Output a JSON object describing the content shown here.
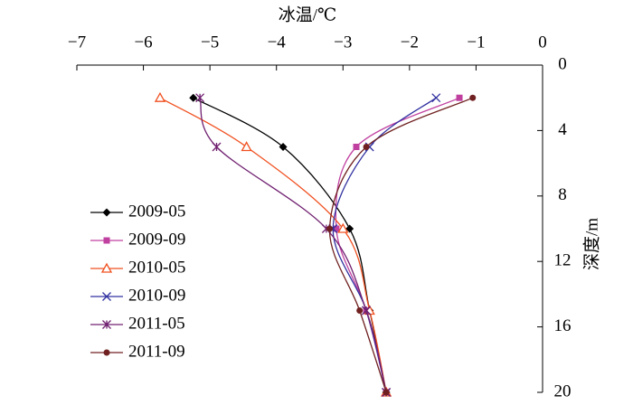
{
  "chart_data": {
    "type": "line",
    "xlabel": "冰温/℃",
    "ylabel": "深度/m",
    "xlim": [
      -7,
      0
    ],
    "xticks": [
      {
        "value": -7,
        "label": "−7"
      },
      {
        "value": -6,
        "label": "−6"
      },
      {
        "value": -5,
        "label": "−5"
      },
      {
        "value": -4,
        "label": "−4"
      },
      {
        "value": -3,
        "label": "−3"
      },
      {
        "value": -2,
        "label": "−2"
      },
      {
        "value": -1,
        "label": "−1"
      },
      0
    ],
    "ylim": [
      0,
      20
    ],
    "yticks": [
      0,
      4,
      8,
      12,
      16,
      20
    ],
    "y_inverted": true,
    "legend": "lower left",
    "series": [
      {
        "name": "2009-05",
        "color": "#000000",
        "marker": "diamond",
        "x": [
          -5.25,
          -3.9,
          -2.9,
          -2.6,
          -2.35
        ],
        "values": [
          2,
          5,
          10,
          15,
          20
        ]
      },
      {
        "name": "2009-09",
        "color": "#c040a0",
        "marker": "square",
        "x": [
          -1.25,
          -2.8,
          -3.1,
          -2.65,
          -2.35
        ],
        "values": [
          2,
          5,
          10,
          15,
          20
        ]
      },
      {
        "name": "2010-05",
        "color": "#f05020",
        "marker": "triangle",
        "x": [
          -5.75,
          -4.45,
          -3.0,
          -2.6,
          -2.35
        ],
        "values": [
          2,
          5,
          10,
          15,
          20
        ]
      },
      {
        "name": "2010-09",
        "color": "#3030a0",
        "marker": "x",
        "x": [
          -1.6,
          -2.6,
          -3.15,
          -2.65,
          -2.35
        ],
        "values": [
          2,
          5,
          10,
          15,
          20
        ]
      },
      {
        "name": "2011-05",
        "color": "#702070",
        "marker": "star",
        "x": [
          -5.15,
          -4.9,
          -3.25,
          -2.65,
          -2.35
        ],
        "values": [
          2,
          5,
          10,
          15,
          20
        ]
      },
      {
        "name": "2011-09",
        "color": "#702020",
        "marker": "circle",
        "x": [
          -1.05,
          -2.65,
          -3.2,
          -2.75,
          -2.35
        ],
        "values": [
          2,
          5,
          10,
          15,
          20
        ]
      }
    ]
  }
}
